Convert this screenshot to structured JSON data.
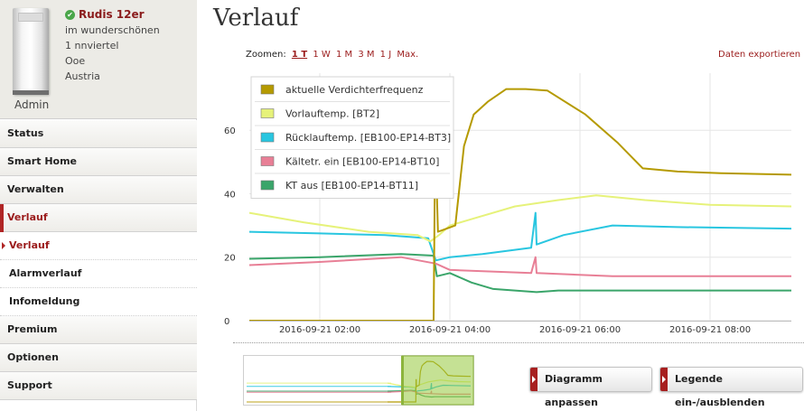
{
  "device": {
    "name": "Rudis 12er",
    "lines": [
      "im wunderschönen",
      "1 nnviertel",
      "Ooe",
      "Austria"
    ],
    "user": "Admin"
  },
  "nav": {
    "items": [
      {
        "label": "Status"
      },
      {
        "label": "Smart Home"
      },
      {
        "label": "Verwalten"
      },
      {
        "label": "Verlauf"
      }
    ],
    "sub_items": [
      {
        "label": "Verlauf"
      },
      {
        "label": "Alarmverlauf"
      },
      {
        "label": "Infomeldung"
      }
    ],
    "bottom_items": [
      {
        "label": "Premium"
      },
      {
        "label": "Optionen"
      },
      {
        "label": "Support"
      }
    ]
  },
  "page": {
    "title": "Verlauf",
    "zoom_label": "Zoomen:",
    "zoom_options": [
      "1 T",
      "1 W",
      "1 M",
      "3 M",
      "1 J",
      "Max."
    ],
    "export_link": "Daten exportieren",
    "buttons": {
      "adjust": "Diagramm anpassen",
      "legend": "Legende ein-/ausblenden"
    }
  },
  "colors": {
    "accent": "#9b1c1c",
    "series": [
      "#b59a00",
      "#e6f27a",
      "#29c6e0",
      "#e87f96",
      "#3aa56a"
    ]
  },
  "chart_data": {
    "type": "line",
    "y_ticks": [
      0,
      20,
      40,
      60
    ],
    "ylim": [
      0,
      78
    ],
    "xlim": [
      "2016-09-21 00:55",
      "2016-09-21 09:15"
    ],
    "x_ticks": [
      "2016-09-21 02:00",
      "2016-09-21 04:00",
      "2016-09-21 06:00",
      "2016-09-21 08:00"
    ],
    "legend_placement": "top-left",
    "series": [
      {
        "name": "aktuelle Verdichterfrequenz",
        "color": "#b59a00",
        "points": [
          [
            "2016-09-21 00:55",
            0
          ],
          [
            "2016-09-21 03:45",
            0
          ],
          [
            "2016-09-21 03:46",
            40
          ],
          [
            "2016-09-21 03:48",
            40
          ],
          [
            "2016-09-21 03:49",
            28
          ],
          [
            "2016-09-21 04:05",
            30
          ],
          [
            "2016-09-21 04:13",
            55
          ],
          [
            "2016-09-21 04:22",
            65
          ],
          [
            "2016-09-21 04:35",
            69
          ],
          [
            "2016-09-21 04:52",
            73
          ],
          [
            "2016-09-21 05:10",
            73
          ],
          [
            "2016-09-21 05:30",
            72.5
          ],
          [
            "2016-09-21 06:05",
            65
          ],
          [
            "2016-09-21 06:35",
            56
          ],
          [
            "2016-09-21 06:58",
            48
          ],
          [
            "2016-09-21 07:30",
            47
          ],
          [
            "2016-09-21 08:10",
            46.5
          ],
          [
            "2016-09-21 09:15",
            46
          ]
        ]
      },
      {
        "name": "Vorlauftemp. [BT2]",
        "color": "#e6f27a",
        "points": [
          [
            "2016-09-21 00:55",
            34
          ],
          [
            "2016-09-21 01:45",
            31
          ],
          [
            "2016-09-21 02:45",
            28
          ],
          [
            "2016-09-21 03:30",
            27
          ],
          [
            "2016-09-21 03:42",
            25
          ],
          [
            "2016-09-21 03:50",
            27
          ],
          [
            "2016-09-21 04:00",
            30
          ],
          [
            "2016-09-21 04:20",
            32
          ],
          [
            "2016-09-21 05:00",
            36
          ],
          [
            "2016-09-21 05:40",
            38
          ],
          [
            "2016-09-21 06:15",
            39.5
          ],
          [
            "2016-09-21 07:00",
            38
          ],
          [
            "2016-09-21 08:00",
            36.5
          ],
          [
            "2016-09-21 09:15",
            36
          ]
        ]
      },
      {
        "name": "Rücklauftemp. [EB100-EP14-BT3]",
        "color": "#29c6e0",
        "points": [
          [
            "2016-09-21 00:55",
            28
          ],
          [
            "2016-09-21 02:00",
            27.5
          ],
          [
            "2016-09-21 03:00",
            27
          ],
          [
            "2016-09-21 03:40",
            26
          ],
          [
            "2016-09-21 03:47",
            19
          ],
          [
            "2016-09-21 04:00",
            20
          ],
          [
            "2016-09-21 04:30",
            21
          ],
          [
            "2016-09-21 05:15",
            23
          ],
          [
            "2016-09-21 05:19",
            34
          ],
          [
            "2016-09-21 05:20",
            24
          ],
          [
            "2016-09-21 05:45",
            27
          ],
          [
            "2016-09-21 06:30",
            30
          ],
          [
            "2016-09-21 07:30",
            29.5
          ],
          [
            "2016-09-21 09:15",
            29
          ]
        ]
      },
      {
        "name": "Kältetr. ein [EB100-EP14-BT10]",
        "color": "#e87f96",
        "points": [
          [
            "2016-09-21 00:55",
            17.5
          ],
          [
            "2016-09-21 02:00",
            18.5
          ],
          [
            "2016-09-21 03:15",
            20
          ],
          [
            "2016-09-21 03:47",
            18
          ],
          [
            "2016-09-21 04:00",
            16
          ],
          [
            "2016-09-21 05:15",
            15
          ],
          [
            "2016-09-21 05:19",
            20
          ],
          [
            "2016-09-21 05:20",
            15
          ],
          [
            "2016-09-21 06:30",
            14
          ],
          [
            "2016-09-21 09:15",
            14
          ]
        ]
      },
      {
        "name": "KT aus [EB100-EP14-BT11]",
        "color": "#3aa56a",
        "points": [
          [
            "2016-09-21 00:55",
            19.5
          ],
          [
            "2016-09-21 02:00",
            20
          ],
          [
            "2016-09-21 03:15",
            21
          ],
          [
            "2016-09-21 03:45",
            20.5
          ],
          [
            "2016-09-21 03:48",
            14
          ],
          [
            "2016-09-21 04:00",
            15
          ],
          [
            "2016-09-21 04:20",
            12
          ],
          [
            "2016-09-21 04:40",
            10
          ],
          [
            "2016-09-21 05:20",
            9
          ],
          [
            "2016-09-21 05:40",
            9.5
          ],
          [
            "2016-09-21 06:30",
            9.5
          ],
          [
            "2016-09-21 07:30",
            9.5
          ],
          [
            "2016-09-21 09:15",
            9.5
          ]
        ]
      }
    ]
  }
}
